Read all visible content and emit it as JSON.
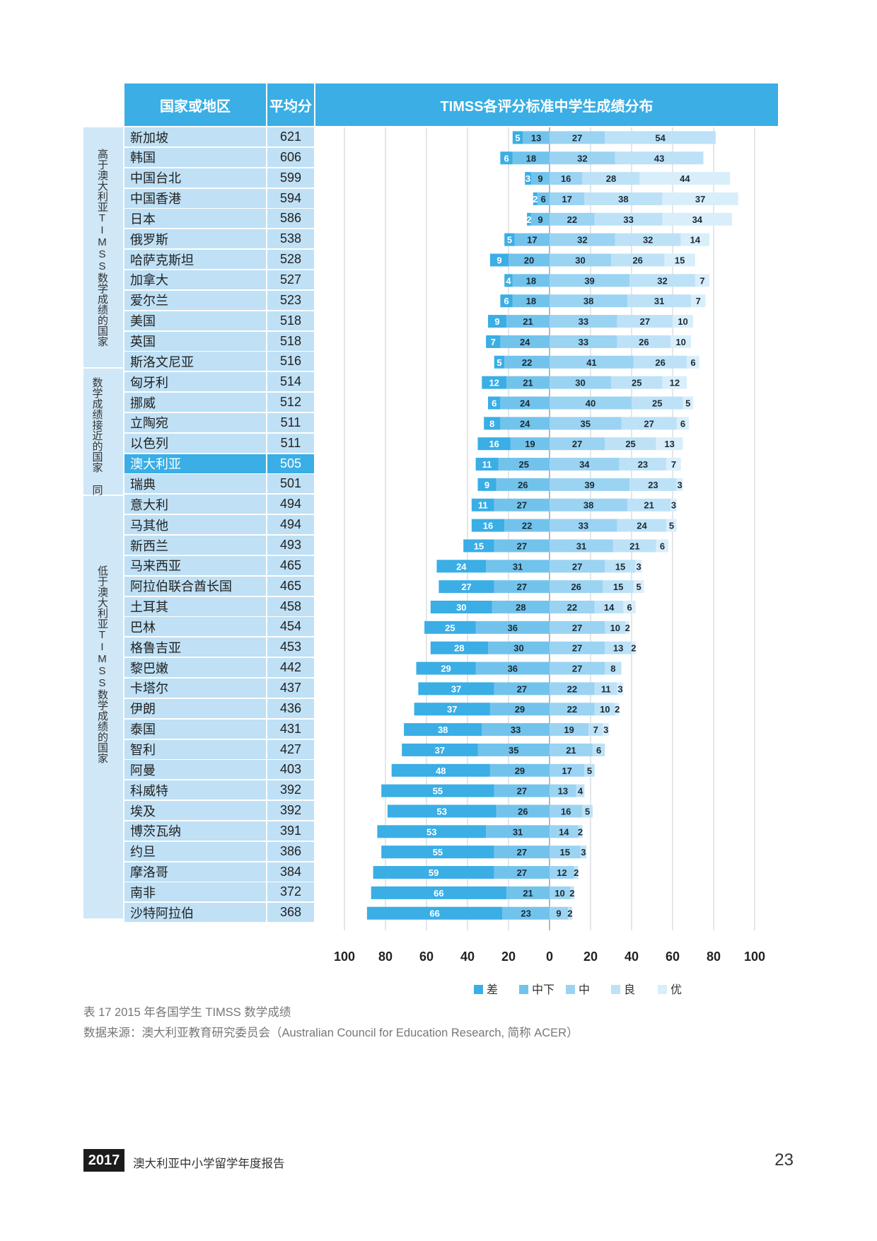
{
  "table": {
    "headers": {
      "country": "国家或地区",
      "average": "平均分",
      "distribution": "TIMSS各评分标准中学生成绩分布"
    },
    "groups": [
      {
        "label": "高于澳大利亚TIMSS数学成绩的国家",
        "rows": 12
      },
      {
        "label": "数学成绩接近的国家 同澳大利亚TIMSS",
        "rows": 6
      },
      {
        "label": "低于澳大利亚TIMSS数学成绩的国家",
        "rows": 21
      }
    ],
    "highlight_country": "澳大利亚",
    "highlight_color": "#3aaee5",
    "header_color": "#3aaee5",
    "group_bg_color": "#cfe7f7",
    "row_bg_color": "#bfe0f5"
  },
  "chart_data": {
    "type": "bar",
    "subtype": "diverging-stacked-horizontal",
    "categories": [
      "新加坡",
      "韩国",
      "中国台北",
      "中国香港",
      "日本",
      "俄罗斯",
      "哈萨克斯坦",
      "加拿大",
      "爱尔兰",
      "美国",
      "英国",
      "斯洛文尼亚",
      "匈牙利",
      "挪威",
      "立陶宛",
      "以色列",
      "澳大利亚",
      "瑞典",
      "意大利",
      "马其他",
      "新西兰",
      "马来西亚",
      "阿拉伯联合酋长国",
      "土耳其",
      "巴林",
      "格鲁吉亚",
      "黎巴嫩",
      "卡塔尔",
      "伊朗",
      "泰国",
      "智利",
      "阿曼",
      "科威特",
      "埃及",
      "博茨瓦纳",
      "约旦",
      "摩洛哥",
      "南非",
      "沙特阿拉伯"
    ],
    "averages": [
      621,
      606,
      599,
      594,
      586,
      538,
      528,
      527,
      523,
      518,
      518,
      516,
      514,
      512,
      511,
      511,
      505,
      501,
      494,
      494,
      493,
      465,
      465,
      458,
      454,
      453,
      442,
      437,
      436,
      431,
      427,
      403,
      392,
      392,
      391,
      386,
      384,
      372,
      368
    ],
    "series": [
      {
        "name": "差",
        "side": "negative",
        "color": "#3aaee5",
        "values": [
          5,
          6,
          3,
          2,
          2,
          5,
          9,
          4,
          6,
          9,
          7,
          5,
          12,
          6,
          8,
          16,
          11,
          9,
          11,
          16,
          15,
          24,
          27,
          30,
          25,
          28,
          29,
          37,
          37,
          38,
          37,
          48,
          55,
          53,
          53,
          55,
          59,
          66,
          66
        ]
      },
      {
        "name": "中下",
        "side": "negative",
        "color": "#72c3ec",
        "values": [
          13,
          18,
          9,
          6,
          9,
          17,
          20,
          18,
          18,
          21,
          24,
          22,
          21,
          24,
          24,
          19,
          25,
          26,
          27,
          22,
          27,
          31,
          27,
          28,
          36,
          30,
          36,
          27,
          29,
          33,
          35,
          29,
          27,
          26,
          31,
          27,
          27,
          21,
          23
        ]
      },
      {
        "name": "中",
        "side": "positive",
        "color": "#9bd3f2",
        "values": [
          27,
          32,
          16,
          17,
          22,
          32,
          30,
          39,
          38,
          33,
          33,
          41,
          30,
          40,
          35,
          27,
          34,
          39,
          38,
          33,
          31,
          27,
          26,
          22,
          27,
          27,
          27,
          22,
          22,
          19,
          21,
          17,
          13,
          16,
          14,
          15,
          12,
          10,
          9
        ]
      },
      {
        "name": "良",
        "side": "positive",
        "color": "#bde2f7",
        "values": [
          54,
          43,
          28,
          38,
          33,
          32,
          26,
          32,
          31,
          27,
          26,
          26,
          25,
          25,
          27,
          25,
          23,
          23,
          21,
          24,
          21,
          15,
          15,
          14,
          10,
          13,
          8,
          11,
          10,
          7,
          6,
          5,
          4,
          5,
          2,
          3,
          2,
          2,
          2
        ]
      },
      {
        "name": "优",
        "side": "positive",
        "color": "#d9eefb",
        "values": [
          null,
          null,
          44,
          37,
          34,
          14,
          15,
          7,
          7,
          10,
          10,
          6,
          12,
          5,
          6,
          13,
          7,
          3,
          3,
          5,
          6,
          3,
          5,
          6,
          2,
          2,
          null,
          3,
          2,
          3,
          null,
          null,
          null,
          null,
          null,
          null,
          null,
          null,
          null
        ]
      }
    ],
    "xaxis_left_ticks": [
      "100",
      "80",
      "60",
      "40",
      "20"
    ],
    "xaxis_center_tick": "0",
    "xaxis_right_ticks": [
      "20",
      "40",
      "60",
      "80",
      "100"
    ],
    "xlim": [
      -100,
      100
    ],
    "grid": true,
    "legend_position": "bottom"
  },
  "caption": {
    "title": "表 17 2015 年各国学生 TIMSS 数学成绩",
    "source": "数据来源：澳大利亚教育研究委员会（Australian Council for Education Research, 简称 ACER）"
  },
  "footer": {
    "year": "2017",
    "title": "澳大利亚中小学留学年度报告",
    "page": "23"
  }
}
